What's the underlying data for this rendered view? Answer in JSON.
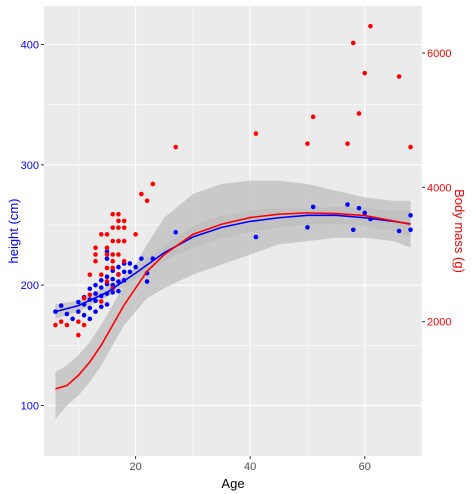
{
  "chart_data": {
    "type": "scatter",
    "xlabel": "Age",
    "ylabel_left": "height (cm)",
    "ylabel_right": "Body mass (g)",
    "xlim": [
      4,
      70
    ],
    "xticks": [
      20,
      40,
      60
    ],
    "ylim_left": [
      58,
      432
    ],
    "yticks_left": [
      100,
      200,
      300,
      400
    ],
    "ylim_right": [
      0,
      6700
    ],
    "yticks_right": [
      2000,
      4000,
      6000
    ],
    "colors": {
      "height": "#0000ff",
      "mass": "#ff0000",
      "band": "#bdbdbd",
      "panel": "#ebebeb",
      "grid": "#ffffff"
    },
    "series": [
      {
        "key": "height",
        "axis": "left",
        "points": [
          [
            6,
            178
          ],
          [
            7,
            183
          ],
          [
            8,
            176
          ],
          [
            9,
            172
          ],
          [
            10,
            178
          ],
          [
            10,
            186
          ],
          [
            11,
            175
          ],
          [
            11,
            184
          ],
          [
            11,
            190
          ],
          [
            12,
            172
          ],
          [
            12,
            181
          ],
          [
            12,
            188
          ],
          [
            12,
            197
          ],
          [
            13,
            178
          ],
          [
            13,
            187
          ],
          [
            13,
            193
          ],
          [
            13,
            200
          ],
          [
            14,
            182
          ],
          [
            14,
            191
          ],
          [
            14,
            198
          ],
          [
            14,
            204
          ],
          [
            15,
            184
          ],
          [
            15,
            193
          ],
          [
            15,
            201
          ],
          [
            15,
            207
          ],
          [
            15,
            222
          ],
          [
            15,
            228
          ],
          [
            16,
            194
          ],
          [
            16,
            200
          ],
          [
            16,
            205
          ],
          [
            16,
            212
          ],
          [
            17,
            195
          ],
          [
            17,
            203
          ],
          [
            17,
            209
          ],
          [
            17,
            215
          ],
          [
            18,
            204
          ],
          [
            18,
            211
          ],
          [
            18,
            218
          ],
          [
            19,
            211
          ],
          [
            19,
            218
          ],
          [
            20,
            215
          ],
          [
            21,
            222
          ],
          [
            22,
            203
          ],
          [
            22,
            210
          ],
          [
            23,
            222
          ],
          [
            27,
            244
          ],
          [
            41,
            240
          ],
          [
            50,
            248
          ],
          [
            51,
            265
          ],
          [
            57,
            267
          ],
          [
            58,
            246
          ],
          [
            59,
            264
          ],
          [
            60,
            260
          ],
          [
            61,
            255
          ],
          [
            66,
            245
          ],
          [
            68,
            246
          ],
          [
            68,
            258
          ]
        ],
        "trend": [
          [
            6,
            178
          ],
          [
            10,
            183
          ],
          [
            15,
            194
          ],
          [
            20,
            210
          ],
          [
            25,
            227
          ],
          [
            30,
            240
          ],
          [
            35,
            248
          ],
          [
            40,
            253
          ],
          [
            45,
            256
          ],
          [
            50,
            258
          ],
          [
            55,
            258
          ],
          [
            60,
            256
          ],
          [
            65,
            253
          ],
          [
            68,
            251
          ]
        ],
        "band_upper": [
          [
            6,
            184
          ],
          [
            10,
            187
          ],
          [
            15,
            199
          ],
          [
            20,
            214
          ],
          [
            25,
            233
          ],
          [
            30,
            249
          ],
          [
            35,
            258
          ],
          [
            40,
            262
          ],
          [
            45,
            264
          ],
          [
            50,
            264
          ],
          [
            55,
            265
          ],
          [
            60,
            264
          ],
          [
            65,
            262
          ],
          [
            68,
            262
          ]
        ],
        "band_lower": [
          [
            6,
            172
          ],
          [
            10,
            178
          ],
          [
            15,
            190
          ],
          [
            20,
            205
          ],
          [
            25,
            220
          ],
          [
            30,
            231
          ],
          [
            35,
            239
          ],
          [
            40,
            244
          ],
          [
            45,
            248
          ],
          [
            50,
            250
          ],
          [
            55,
            251
          ],
          [
            60,
            249
          ],
          [
            65,
            245
          ],
          [
            68,
            240
          ]
        ]
      },
      {
        "key": "mass",
        "axis": "right",
        "points": [
          [
            6,
            1950
          ],
          [
            7,
            2000
          ],
          [
            8,
            1950
          ],
          [
            10,
            1800
          ],
          [
            10,
            2000
          ],
          [
            11,
            1950
          ],
          [
            11,
            2350
          ],
          [
            12,
            2400
          ],
          [
            12,
            2700
          ],
          [
            13,
            2900
          ],
          [
            13,
            3000
          ],
          [
            13,
            3100
          ],
          [
            14,
            2300
          ],
          [
            14,
            2700
          ],
          [
            14,
            3300
          ],
          [
            15,
            2600
          ],
          [
            15,
            2800
          ],
          [
            15,
            3000
          ],
          [
            15,
            3100
          ],
          [
            15,
            3300
          ],
          [
            16,
            2500
          ],
          [
            16,
            2800
          ],
          [
            16,
            2900
          ],
          [
            16,
            3000
          ],
          [
            16,
            3200
          ],
          [
            16,
            3400
          ],
          [
            16,
            3600
          ],
          [
            17,
            2700
          ],
          [
            17,
            3000
          ],
          [
            17,
            3200
          ],
          [
            17,
            3400
          ],
          [
            17,
            3500
          ],
          [
            17,
            3600
          ],
          [
            18,
            2900
          ],
          [
            18,
            3200
          ],
          [
            18,
            3400
          ],
          [
            18,
            3500
          ],
          [
            20,
            3300
          ],
          [
            21,
            3900
          ],
          [
            22,
            3800
          ],
          [
            23,
            4050
          ],
          [
            27,
            4600
          ],
          [
            41,
            4800
          ],
          [
            50,
            4650
          ],
          [
            51,
            5050
          ],
          [
            57,
            4650
          ],
          [
            58,
            6150
          ],
          [
            59,
            5100
          ],
          [
            60,
            5700
          ],
          [
            61,
            6400
          ],
          [
            66,
            5650
          ],
          [
            68,
            4600
          ]
        ],
        "trend": [
          [
            6,
            1000
          ],
          [
            8,
            1050
          ],
          [
            10,
            1200
          ],
          [
            12,
            1400
          ],
          [
            14,
            1650
          ],
          [
            16,
            1950
          ],
          [
            18,
            2250
          ],
          [
            20,
            2500
          ],
          [
            22,
            2750
          ],
          [
            25,
            3000
          ],
          [
            30,
            3300
          ],
          [
            35,
            3450
          ],
          [
            40,
            3550
          ],
          [
            45,
            3600
          ],
          [
            50,
            3620
          ],
          [
            55,
            3610
          ],
          [
            60,
            3580
          ],
          [
            65,
            3500
          ],
          [
            68,
            3450
          ]
        ],
        "band_upper": [
          [
            6,
            1250
          ],
          [
            8,
            1350
          ],
          [
            10,
            1500
          ],
          [
            12,
            1700
          ],
          [
            14,
            1950
          ],
          [
            16,
            2250
          ],
          [
            18,
            2550
          ],
          [
            20,
            2850
          ],
          [
            22,
            3150
          ],
          [
            25,
            3550
          ],
          [
            30,
            3900
          ],
          [
            35,
            4050
          ],
          [
            40,
            4100
          ],
          [
            45,
            4100
          ],
          [
            50,
            4050
          ],
          [
            55,
            3950
          ],
          [
            60,
            3850
          ],
          [
            65,
            3800
          ],
          [
            68,
            3800
          ]
        ],
        "band_lower": [
          [
            6,
            550
          ],
          [
            8,
            750
          ],
          [
            10,
            900
          ],
          [
            12,
            1100
          ],
          [
            14,
            1350
          ],
          [
            16,
            1650
          ],
          [
            18,
            1950
          ],
          [
            20,
            2150
          ],
          [
            22,
            2350
          ],
          [
            25,
            2500
          ],
          [
            30,
            2700
          ],
          [
            35,
            2850
          ],
          [
            40,
            3000
          ],
          [
            45,
            3150
          ],
          [
            50,
            3200
          ],
          [
            55,
            3250
          ],
          [
            60,
            3250
          ],
          [
            65,
            3200
          ],
          [
            68,
            3100
          ]
        ]
      }
    ]
  }
}
